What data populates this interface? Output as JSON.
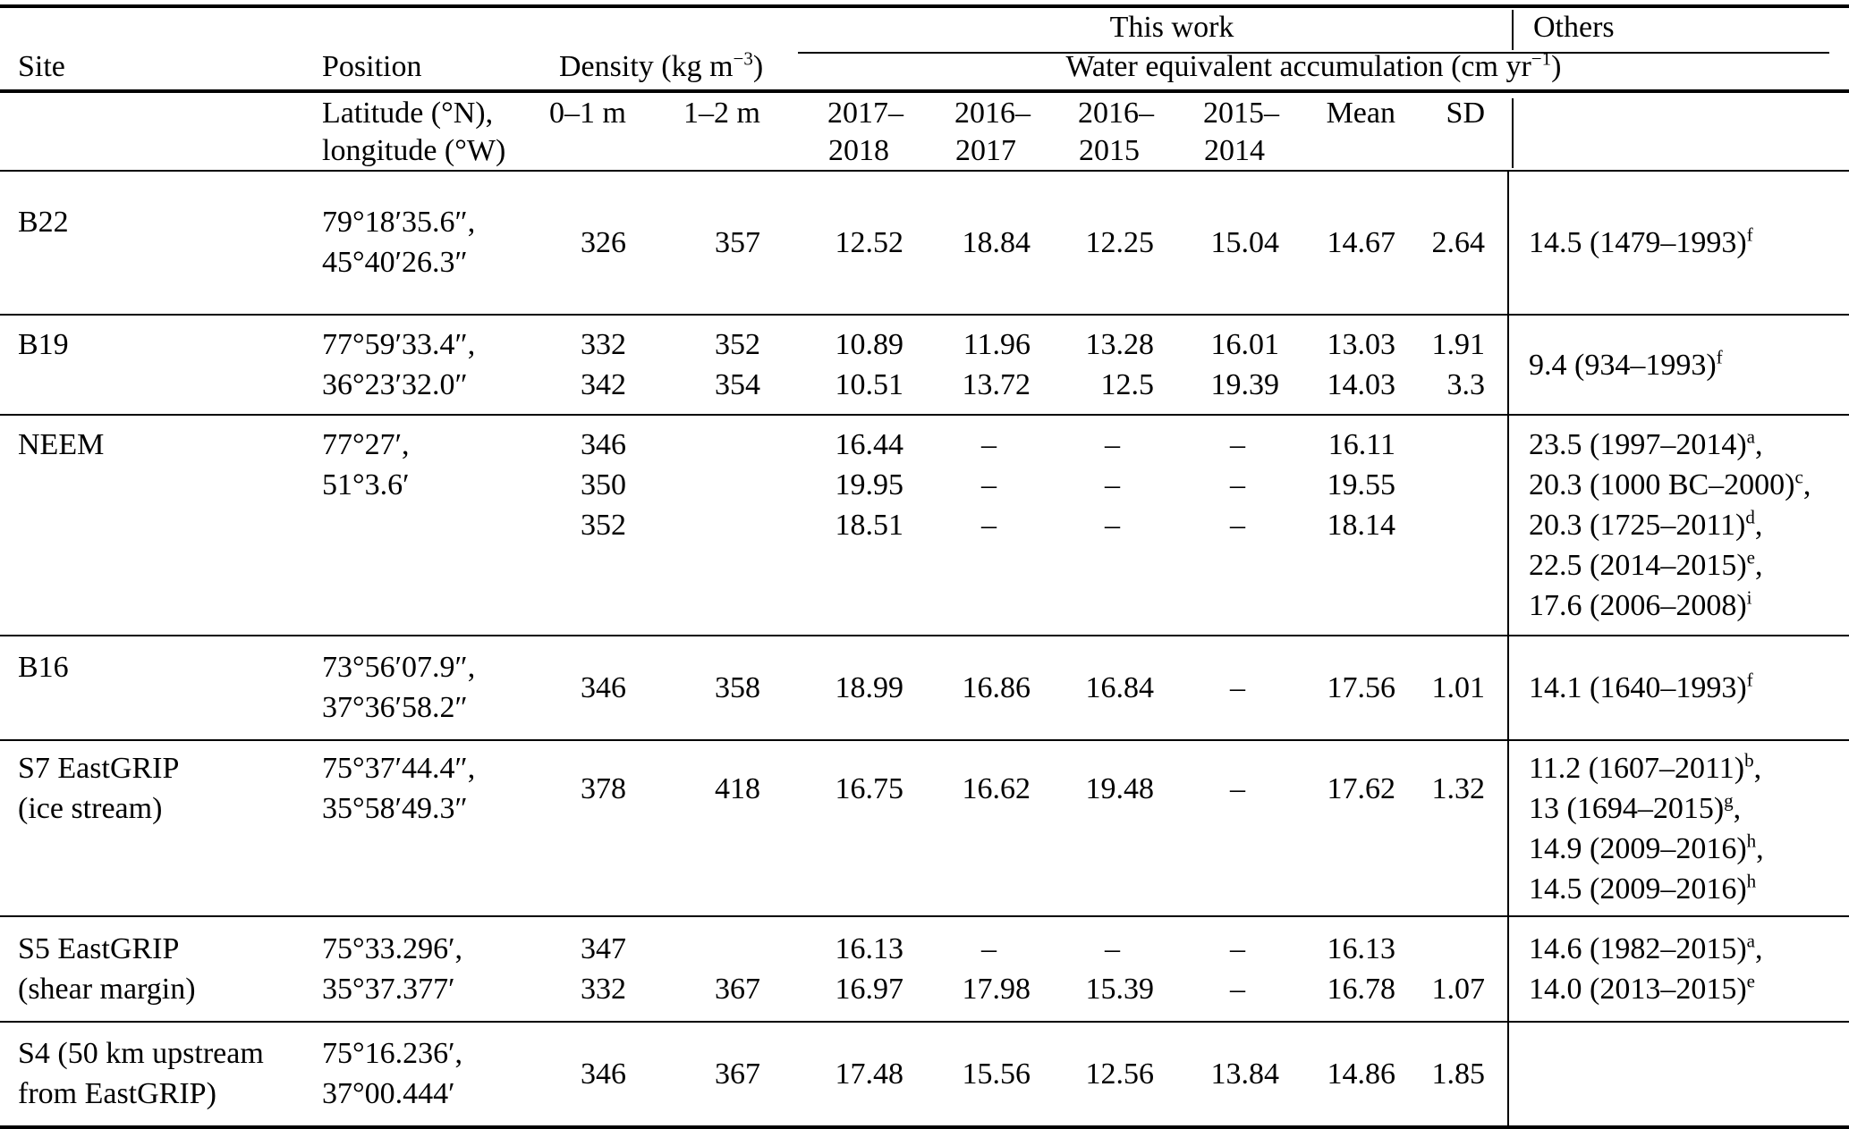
{
  "header": {
    "this_work": "This work",
    "others": "Others",
    "site": "Site",
    "position": "Position",
    "density": {
      "pre": "Density (kg m",
      "sup": "−3",
      "post": ")"
    },
    "accum": {
      "pre": "Water equivalent accumulation (cm yr",
      "sup": "−1",
      "post": ")"
    },
    "sub": {
      "latitude_line1": "Latitude (°N),",
      "latitude_line2": "longitude (°W)",
      "d01": "0–1 m",
      "d12": "1–2 m",
      "years": [
        [
          "2017–",
          "2018"
        ],
        [
          "2016–",
          "2017"
        ],
        [
          "2016–",
          "2015"
        ],
        [
          "2015–",
          "2014"
        ]
      ],
      "mean": "Mean",
      "sd": "SD"
    }
  },
  "rows": [
    {
      "pt": 34,
      "pb": 35,
      "site": [
        "B22"
      ],
      "pos": [
        "79°18′35.6″,",
        "45°40′26.3″"
      ],
      "d01": {
        "va": "ctr",
        "lines": [
          "326"
        ]
      },
      "d12": {
        "va": "ctr",
        "lines": [
          "357"
        ]
      },
      "v1": {
        "va": "ctr",
        "lines": [
          "12.52"
        ]
      },
      "v2": {
        "va": "ctr",
        "lines": [
          "18.84"
        ]
      },
      "v3": {
        "va": "ctr",
        "lines": [
          "12.25"
        ]
      },
      "v4": {
        "va": "ctr",
        "lines": [
          "15.04"
        ]
      },
      "mean": {
        "va": "ctr",
        "lines": [
          "14.67"
        ]
      },
      "sd": {
        "va": "ctr",
        "lines": [
          "2.64"
        ]
      },
      "others": {
        "va": "ctr",
        "lines": [
          {
            "t": "14.5 (1479–1993)",
            "s": "f",
            "c": ""
          }
        ]
      }
    },
    {
      "pt": 10,
      "pb": 10,
      "site": [
        "B19"
      ],
      "pos": [
        "77°59′33.4″,",
        "36°23′32.0″"
      ],
      "d01": {
        "va": "top",
        "lines": [
          "332",
          "342"
        ]
      },
      "d12": {
        "va": "top",
        "lines": [
          "352",
          "354"
        ]
      },
      "v1": {
        "va": "top",
        "lines": [
          "10.89",
          "10.51"
        ]
      },
      "v2": {
        "va": "top",
        "lines": [
          "11.96",
          "13.72"
        ]
      },
      "v3": {
        "va": "top",
        "lines": [
          "13.28",
          "12.5"
        ]
      },
      "v4": {
        "va": "top",
        "lines": [
          "16.01",
          "19.39"
        ]
      },
      "mean": {
        "va": "top",
        "lines": [
          "13.03",
          "14.03"
        ]
      },
      "sd": {
        "va": "top",
        "lines": [
          "1.91",
          "3.3"
        ]
      },
      "others": {
        "va": "ctr",
        "lines": [
          {
            "t": "9.4 (934–1993)",
            "s": "f",
            "c": ""
          }
        ]
      }
    },
    {
      "pt": 10,
      "pb": 10,
      "site": [
        "NEEM"
      ],
      "pos": [
        "77°27′,",
        "51°3.6′"
      ],
      "d01": {
        "va": "top",
        "lines": [
          "346",
          "350",
          "352"
        ]
      },
      "d12": {
        "va": "top",
        "lines": []
      },
      "v1": {
        "va": "top",
        "lines": [
          "16.44",
          "19.95",
          "18.51"
        ]
      },
      "v2": {
        "va": "top",
        "lines": [
          "–",
          "–",
          "–"
        ]
      },
      "v3": {
        "va": "top",
        "lines": [
          "–",
          "–",
          "–"
        ]
      },
      "v4": {
        "va": "top",
        "lines": [
          "–",
          "–",
          "–"
        ]
      },
      "mean": {
        "va": "top",
        "lines": [
          "16.11",
          "19.55",
          "18.14"
        ]
      },
      "sd": {
        "va": "top",
        "lines": []
      },
      "others": {
        "va": "top",
        "lines": [
          {
            "t": "23.5 (1997–2014)",
            "s": "a",
            "c": ","
          },
          {
            "t": "20.3 (1000 BC–2000)",
            "s": "c",
            "c": ","
          },
          {
            "t": "20.3 (1725–2011)",
            "s": "d",
            "c": ","
          },
          {
            "t": "22.5 (2014–2015)",
            "s": "e",
            "c": ","
          },
          {
            "t": "17.6 (2006–2008)",
            "s": "i",
            "c": ""
          }
        ]
      }
    },
    {
      "pt": 12,
      "pb": 13,
      "site": [
        "B16"
      ],
      "pos": [
        "73°56′07.9″,",
        "37°36′58.2″"
      ],
      "d01": {
        "va": "ctr",
        "lines": [
          "346"
        ]
      },
      "d12": {
        "va": "ctr",
        "lines": [
          "358"
        ]
      },
      "v1": {
        "va": "ctr",
        "lines": [
          "18.99"
        ]
      },
      "v2": {
        "va": "ctr",
        "lines": [
          "16.86"
        ]
      },
      "v3": {
        "va": "ctr",
        "lines": [
          "16.84"
        ]
      },
      "v4": {
        "va": "ctr",
        "lines": [
          "–"
        ]
      },
      "mean": {
        "va": "ctr",
        "lines": [
          "17.56"
        ]
      },
      "sd": {
        "va": "ctr",
        "lines": [
          "1.01"
        ]
      },
      "others": {
        "va": "ctr",
        "lines": [
          {
            "t": "14.1 (1640–1993)",
            "s": "f",
            "c": ""
          }
        ]
      }
    },
    {
      "pt": 8,
      "pb": 7,
      "site": [
        "S7 EastGRIP",
        "(ice stream)"
      ],
      "pos": [
        "75°37′44.4″,",
        "35°58′49.3″"
      ],
      "d01": {
        "va": "ctr",
        "lines": [
          "378"
        ]
      },
      "d12": {
        "va": "ctr",
        "lines": [
          "418"
        ]
      },
      "v1": {
        "va": "ctr",
        "lines": [
          "16.75"
        ]
      },
      "v2": {
        "va": "ctr",
        "lines": [
          "16.62"
        ]
      },
      "v3": {
        "va": "ctr",
        "lines": [
          "19.48"
        ]
      },
      "v4": {
        "va": "ctr",
        "lines": [
          "–"
        ]
      },
      "mean": {
        "va": "ctr",
        "lines": [
          "17.62"
        ]
      },
      "sd": {
        "va": "ctr",
        "lines": [
          "1.32"
        ]
      },
      "others": {
        "va": "top",
        "lines": [
          {
            "t": "11.2 (1607–2011)",
            "s": "b",
            "c": ","
          },
          {
            "t": "13 (1694–2015)",
            "s": "g",
            "c": ","
          },
          {
            "t": "14.9 (2009–2016)",
            "s": "h",
            "c": ","
          },
          {
            "t": "14.5 (2009–2016)",
            "s": "h",
            "c": ""
          }
        ]
      }
    },
    {
      "pt": 13,
      "pb": 13,
      "site": [
        "S5 EastGRIP",
        "(shear margin)"
      ],
      "pos": [
        "75°33.296′,",
        "35°37.377′"
      ],
      "d01": {
        "va": "top",
        "lines": [
          "347",
          "332"
        ]
      },
      "d12": {
        "va": "top",
        "lines": [
          "",
          "367"
        ]
      },
      "v1": {
        "va": "top",
        "lines": [
          "16.13",
          "16.97"
        ]
      },
      "v2": {
        "va": "top",
        "lines": [
          "–",
          "17.98"
        ]
      },
      "v3": {
        "va": "top",
        "lines": [
          "–",
          "15.39"
        ]
      },
      "v4": {
        "va": "top",
        "lines": [
          "–",
          "–"
        ]
      },
      "mean": {
        "va": "top",
        "lines": [
          "16.13",
          "16.78"
        ]
      },
      "sd": {
        "va": "top",
        "lines": [
          "",
          "1.07"
        ]
      },
      "others": {
        "va": "top",
        "lines": [
          {
            "t": "14.6 (1982–2015)",
            "s": "a",
            "c": ","
          },
          {
            "t": "14.0 (2013–2015)",
            "s": "e",
            "c": ""
          }
        ]
      }
    },
    {
      "pt": 12,
      "pb": 13,
      "site": [
        "S4 (50 km upstream",
        "from EastGRIP)"
      ],
      "pos": [
        "75°16.236′,",
        "37°00.444′"
      ],
      "d01": {
        "va": "ctr",
        "lines": [
          "346"
        ]
      },
      "d12": {
        "va": "ctr",
        "lines": [
          "367"
        ]
      },
      "v1": {
        "va": "ctr",
        "lines": [
          "17.48"
        ]
      },
      "v2": {
        "va": "ctr",
        "lines": [
          "15.56"
        ]
      },
      "v3": {
        "va": "ctr",
        "lines": [
          "12.56"
        ]
      },
      "v4": {
        "va": "ctr",
        "lines": [
          "13.84"
        ]
      },
      "mean": {
        "va": "ctr",
        "lines": [
          "14.86"
        ]
      },
      "sd": {
        "va": "ctr",
        "lines": [
          "1.85"
        ]
      },
      "others": {
        "va": "top",
        "lines": []
      }
    }
  ]
}
